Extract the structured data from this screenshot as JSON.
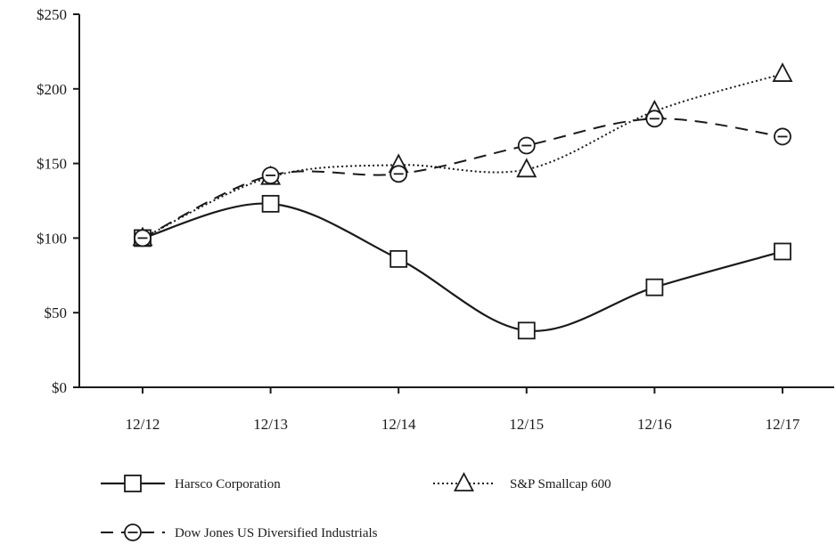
{
  "chart_data": {
    "type": "line",
    "title": "",
    "xlabel": "",
    "ylabel": "",
    "categories": [
      "12/12",
      "12/13",
      "12/14",
      "12/15",
      "12/16",
      "12/17"
    ],
    "ylim": [
      0,
      250
    ],
    "yticks": [
      0,
      50,
      100,
      150,
      200,
      250
    ],
    "ytick_labels": [
      "$0",
      "$50",
      "$100",
      "$150",
      "$200",
      "$250"
    ],
    "grid": false,
    "legend_position": "bottom",
    "series": [
      {
        "name": "Harsco Corporation",
        "values": [
          100,
          123,
          86,
          38,
          67,
          91
        ],
        "marker": "square",
        "line_style": "solid",
        "color": "#1a1a1a"
      },
      {
        "name": "S&P Smallcap 600",
        "values": [
          100,
          141,
          149,
          146,
          185,
          210
        ],
        "marker": "triangle",
        "line_style": "dotted",
        "color": "#1a1a1a"
      },
      {
        "name": "Dow Jones US Diversified Industrials",
        "values": [
          100,
          142,
          143,
          162,
          180,
          168
        ],
        "marker": "circle-dash",
        "line_style": "dashed",
        "color": "#1a1a1a"
      }
    ]
  }
}
